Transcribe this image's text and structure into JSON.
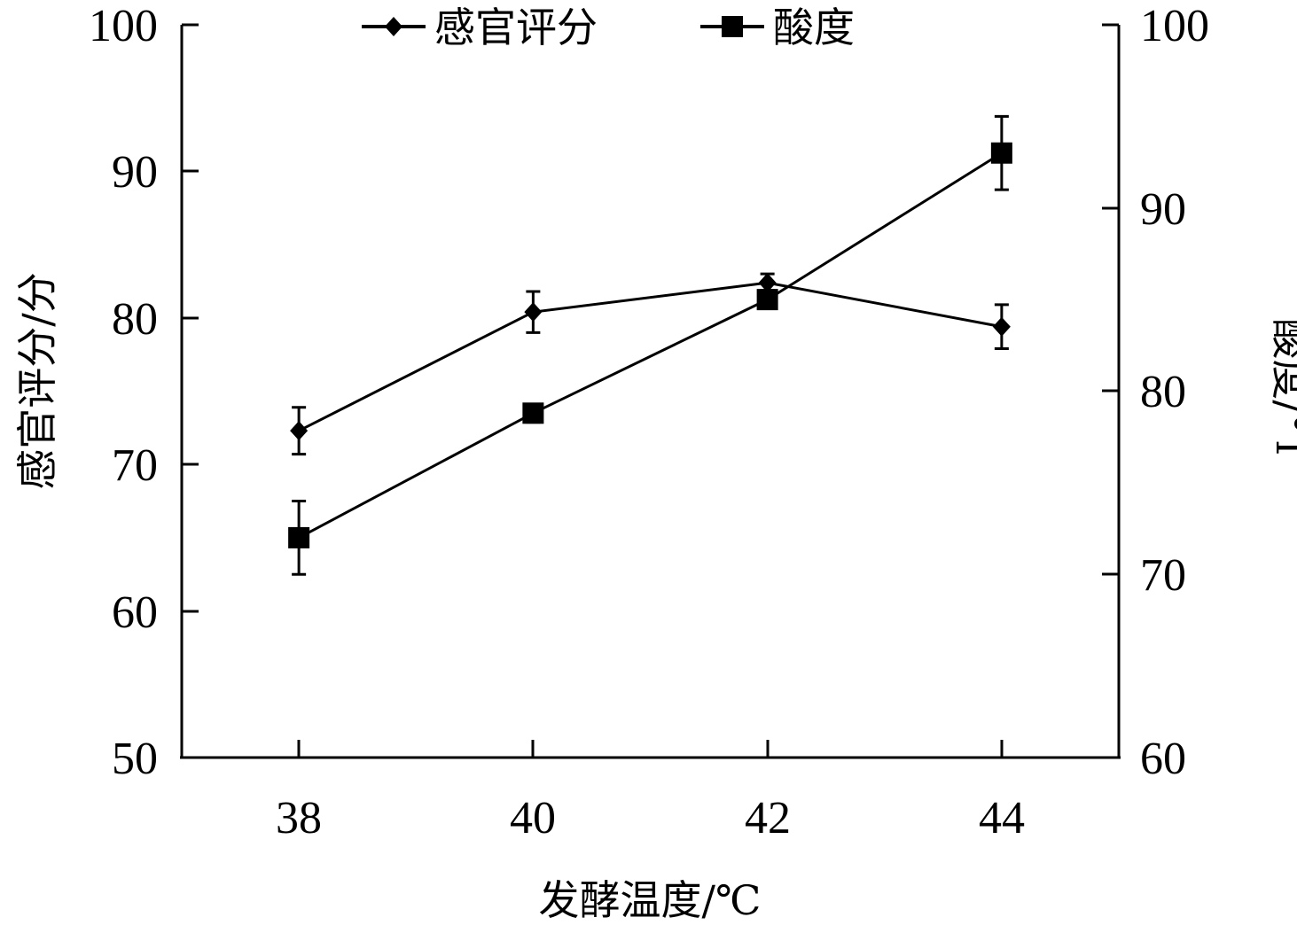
{
  "chart_data": {
    "type": "line",
    "title": "",
    "x": [
      38,
      40,
      42,
      44
    ],
    "x_ticks": [
      "38",
      "40",
      "42",
      "44"
    ],
    "xlabel": "发酵温度/℃",
    "xlim": [
      37,
      45
    ],
    "y_left": {
      "label": "感官评分/分",
      "lim": [
        50,
        100
      ],
      "ticks": [
        "50",
        "60",
        "70",
        "80",
        "90",
        "100"
      ]
    },
    "y_right": {
      "label": "酸度/°T",
      "lim": [
        60,
        100
      ],
      "ticks": [
        "60",
        "70",
        "80",
        "90",
        "100"
      ]
    },
    "series": [
      {
        "name": "感官评分",
        "axis": "left",
        "marker": "diamond",
        "values": [
          72.3,
          80.4,
          82.4,
          79.4
        ],
        "errors": [
          1.6,
          1.4,
          0.6,
          1.5
        ]
      },
      {
        "name": "酸度",
        "axis": "right",
        "marker": "square",
        "values": [
          72.0,
          78.8,
          85.0,
          93.0
        ],
        "errors": [
          2.0,
          0.5,
          0.5,
          2.0
        ]
      }
    ],
    "legend_position": "top-center",
    "grid": false,
    "line_color": "#000000"
  }
}
